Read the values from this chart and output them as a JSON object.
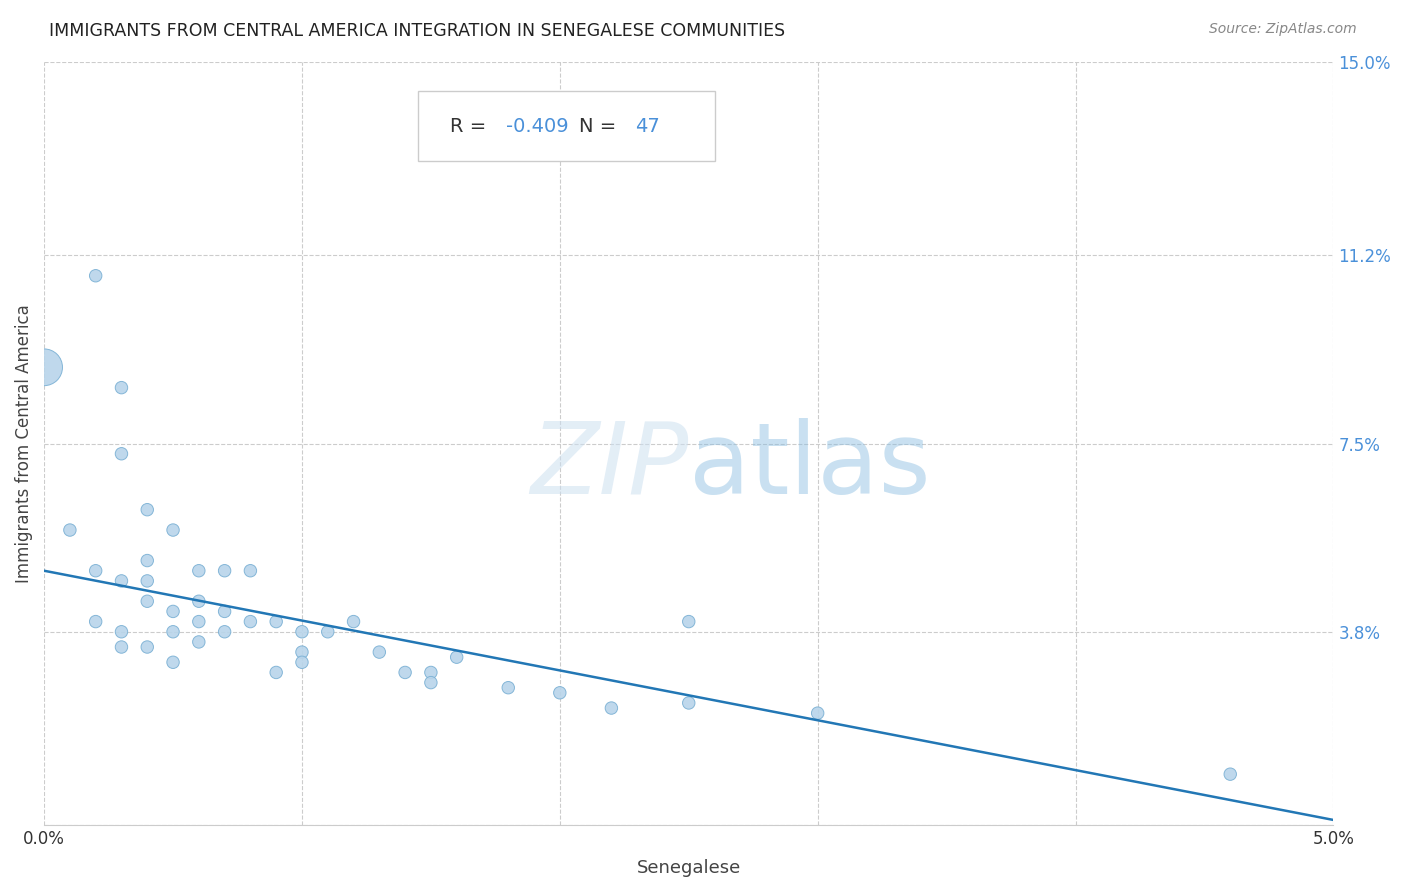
{
  "title": "IMMIGRANTS FROM CENTRAL AMERICA INTEGRATION IN SENEGALESE COMMUNITIES",
  "source": "Source: ZipAtlas.com",
  "xlabel": "Senegalese",
  "ylabel": "Immigrants from Central America",
  "xlim": [
    0.0,
    0.05
  ],
  "ylim": [
    0.0,
    0.15
  ],
  "xticks": [
    0.0,
    0.01,
    0.02,
    0.03,
    0.04,
    0.05
  ],
  "xtick_labels": [
    "0.0%",
    "",
    "",
    "",
    "",
    "5.0%"
  ],
  "yticks_right": [
    0.0,
    0.038,
    0.075,
    0.112,
    0.15
  ],
  "ytick_labels_right": [
    "",
    "3.8%",
    "7.5%",
    "11.2%",
    "15.0%"
  ],
  "R_val": "-0.409",
  "N_val": "47",
  "watermark_zip": "ZIP",
  "watermark_atlas": "atlas",
  "scatter_color": "#b8d4ea",
  "scatter_edgecolor": "#7ab0d4",
  "line_color": "#2277b5",
  "axis_color": "#4a90d9",
  "grid_color": "#cccccc",
  "annot_text_color": "#333333",
  "title_color": "#222222",
  "source_color": "#888888",
  "scatter_x": [
    0.0,
    0.002,
    0.003,
    0.003,
    0.004,
    0.005,
    0.001,
    0.002,
    0.003,
    0.004,
    0.004,
    0.005,
    0.006,
    0.006,
    0.007,
    0.008,
    0.002,
    0.003,
    0.004,
    0.005,
    0.006,
    0.007,
    0.008,
    0.009,
    0.01,
    0.01,
    0.011,
    0.012,
    0.013,
    0.014,
    0.015,
    0.003,
    0.004,
    0.005,
    0.006,
    0.007,
    0.009,
    0.01,
    0.015,
    0.016,
    0.018,
    0.02,
    0.022,
    0.025,
    0.025,
    0.03,
    0.046
  ],
  "scatter_y": [
    0.09,
    0.108,
    0.086,
    0.073,
    0.062,
    0.058,
    0.058,
    0.05,
    0.048,
    0.048,
    0.052,
    0.042,
    0.05,
    0.044,
    0.05,
    0.05,
    0.04,
    0.038,
    0.044,
    0.038,
    0.04,
    0.042,
    0.04,
    0.04,
    0.038,
    0.034,
    0.038,
    0.04,
    0.034,
    0.03,
    0.03,
    0.035,
    0.035,
    0.032,
    0.036,
    0.038,
    0.03,
    0.032,
    0.028,
    0.033,
    0.027,
    0.026,
    0.023,
    0.024,
    0.04,
    0.022,
    0.01
  ],
  "scatter_sizes": [
    700,
    80,
    80,
    80,
    80,
    80,
    80,
    80,
    80,
    80,
    80,
    80,
    80,
    80,
    80,
    80,
    80,
    80,
    80,
    80,
    80,
    80,
    80,
    80,
    80,
    80,
    80,
    80,
    80,
    80,
    80,
    80,
    80,
    80,
    80,
    80,
    80,
    80,
    80,
    80,
    80,
    80,
    80,
    80,
    80,
    80,
    80
  ],
  "line_x": [
    0.0,
    0.05
  ],
  "line_y": [
    0.05,
    0.001
  ]
}
